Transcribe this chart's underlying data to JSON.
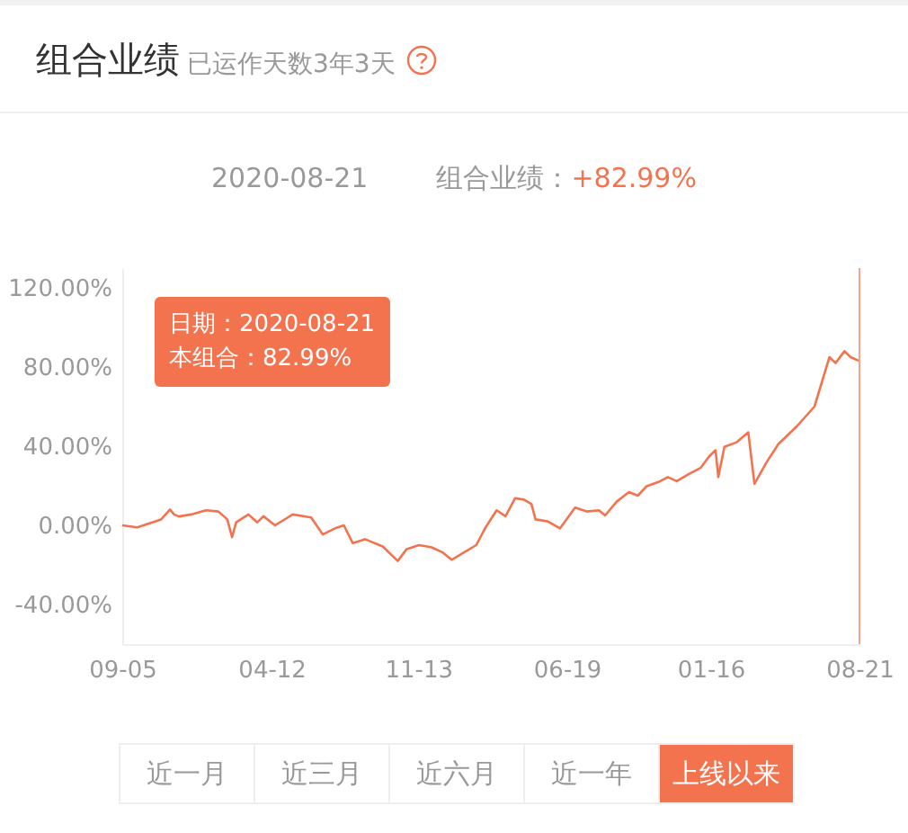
{
  "chart_data": {
    "type": "line",
    "title": "组合业绩",
    "subtitle": "已运作天数3年3天",
    "annotations": [
      "2020-08-21",
      "组合业绩：",
      "+82.99%",
      "日期：2020-08-21",
      "本组合：82.99%",
      "近一月",
      "近三月",
      "近六月",
      "近一年",
      "上线以来"
    ],
    "x": [
      "2017-09-05",
      "2017-09-27",
      "2017-10-15",
      "2017-11-01",
      "2017-11-14",
      "2017-11-20",
      "2017-11-27",
      "2017-12-15",
      "2018-01-06",
      "2018-01-24",
      "2018-02-06",
      "2018-02-13",
      "2018-02-19",
      "2018-03-09",
      "2018-03-22",
      "2018-03-31",
      "2018-04-17",
      "2018-05-13",
      "2018-06-09",
      "2018-06-26",
      "2018-07-14",
      "2018-07-27",
      "2018-08-09",
      "2018-08-27",
      "2018-09-22",
      "2018-10-14",
      "2018-10-27",
      "2018-11-14",
      "2018-12-02",
      "2018-12-19",
      "2019-01-01",
      "2019-01-19",
      "2019-02-06",
      "2019-02-19",
      "2019-03-08",
      "2019-03-21",
      "2019-04-04",
      "2019-04-17",
      "2019-04-28",
      "2019-05-04",
      "2019-05-22",
      "2019-06-09",
      "2019-07-01",
      "2019-07-18",
      "2019-08-05",
      "2019-08-14",
      "2019-08-31",
      "2019-09-18",
      "2019-10-01",
      "2019-10-14",
      "2019-11-01",
      "2019-11-14",
      "2019-11-27",
      "2019-12-15",
      "2020-01-01",
      "2020-01-14",
      "2020-01-23",
      "2020-01-27",
      "2020-02-05",
      "2020-02-23",
      "2020-03-11",
      "2020-03-20",
      "2020-04-07",
      "2020-04-24",
      "2020-05-21",
      "2020-06-16",
      "2020-07-08",
      "2020-07-17",
      "2020-07-30",
      "2020-08-08",
      "2020-08-21"
    ],
    "series": [
      {
        "color": "#f4734f",
        "values": [
          0,
          -1,
          1,
          3,
          8,
          5.5,
          4.5,
          5.5,
          7.6,
          7,
          3,
          -6,
          1.5,
          5.5,
          1.5,
          4.6,
          0,
          5.5,
          4,
          -4.6,
          -1.5,
          0,
          -9,
          -7,
          -10.7,
          -18,
          -12,
          -10,
          -11,
          -13.7,
          -17.4,
          -13.7,
          -10,
          -1.5,
          7.6,
          4.6,
          13.7,
          13,
          10.7,
          3,
          2,
          -1.5,
          9,
          7,
          7.6,
          5,
          12,
          16.8,
          15,
          19.8,
          22,
          24.4,
          22.3,
          26,
          29,
          35,
          38,
          24.4,
          39.7,
          42,
          47,
          21,
          32,
          41,
          50,
          60,
          85,
          82,
          88,
          85,
          82.99
        ]
      }
    ],
    "xlim": [
      "2017-09-05",
      "2020-08-21"
    ],
    "xticks": [
      {
        "value": "2017-09-05",
        "label": "09-05"
      },
      {
        "value": "2018-04-12",
        "label": "04-12"
      },
      {
        "value": "2018-11-13",
        "label": "11-13"
      },
      {
        "value": "2019-06-19",
        "label": "06-19"
      },
      {
        "value": "2020-01-16",
        "label": "01-16"
      },
      {
        "value": "2020-08-21",
        "label": "08-21"
      }
    ],
    "ylim": [
      -60,
      130
    ],
    "yticks": [
      {
        "value": -40,
        "label": "-40.00%"
      },
      {
        "value": 0,
        "label": "0.00%"
      },
      {
        "value": 40,
        "label": "40.00%"
      },
      {
        "value": 80,
        "label": "80.00%"
      },
      {
        "value": 120,
        "label": "120.00%"
      }
    ],
    "ref_lines": [
      {
        "axis": "x",
        "value": "2020-08-21",
        "color": "#f7a28c"
      }
    ],
    "grid": false,
    "legend": false,
    "marker": "none",
    "line_style": "solid"
  }
}
